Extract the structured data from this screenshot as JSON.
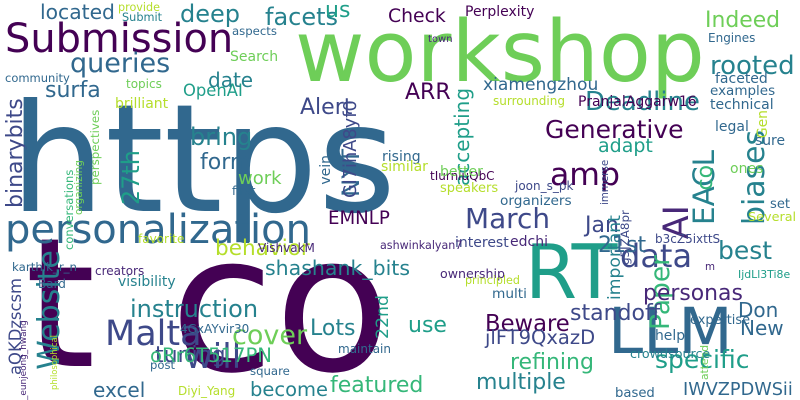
{
  "colors": {
    "background": "#ffffff",
    "palette": [
      "#440154",
      "#482878",
      "#3e4989",
      "#31688e",
      "#26828e",
      "#1f9e89",
      "#35b779",
      "#6ece58",
      "#b5de2b",
      "#fde725"
    ]
  },
  "words": [
    {
      "text": "https",
      "color": "#31688e"
    },
    {
      "text": "t",
      "color": "#440154"
    },
    {
      "text": "co",
      "color": "#440154"
    },
    {
      "text": "workshop",
      "color": "#6ece58"
    },
    {
      "text": "RT",
      "color": "#1f9e89"
    },
    {
      "text": "LLM",
      "color": "#31688e"
    },
    {
      "text": "Submission",
      "color": "#440154"
    },
    {
      "text": "personalization",
      "color": "#31688e"
    },
    {
      "text": "will",
      "color": "#3e4989"
    },
    {
      "text": "Malta",
      "color": "#3e4989"
    },
    {
      "text": "AI",
      "color": "#482878"
    },
    {
      "text": "EACL",
      "color": "#26828e"
    },
    {
      "text": "amp",
      "color": "#440154"
    },
    {
      "text": "Website",
      "color": "#26828e"
    },
    {
      "text": "data",
      "color": "#3e4989"
    },
    {
      "text": "March",
      "color": "#3e4989"
    },
    {
      "text": "Paper",
      "color": "#35b779"
    },
    {
      "text": "NYT",
      "color": "#31688e"
    },
    {
      "text": "co",
      "color": "#35b779"
    },
    {
      "text": "cover",
      "color": "#6ece58"
    },
    {
      "text": "Deadline",
      "color": "#26828e"
    },
    {
      "text": "Indeed",
      "color": "#6ece58"
    },
    {
      "text": "rooted",
      "color": "#26828e"
    },
    {
      "text": "queries",
      "color": "#31688e"
    },
    {
      "text": "facets",
      "color": "#26828e"
    },
    {
      "text": "us",
      "color": "#1f9e89"
    },
    {
      "text": "Check",
      "color": "#440154"
    },
    {
      "text": "deep",
      "color": "#26828e"
    },
    {
      "text": "located",
      "color": "#31688e"
    },
    {
      "text": "Alert",
      "color": "#3e4989"
    },
    {
      "text": "ARR",
      "color": "#440154"
    },
    {
      "text": "xiamengzhou",
      "color": "#31688e"
    },
    {
      "text": "Generative",
      "color": "#440154"
    },
    {
      "text": "adapt",
      "color": "#1f9e89"
    },
    {
      "text": "OpenAI",
      "color": "#1f9e89"
    },
    {
      "text": "date",
      "color": "#26828e"
    },
    {
      "text": "surfa",
      "color": "#31688e"
    },
    {
      "text": "binarybits",
      "color": "#3e4989"
    },
    {
      "text": "bring",
      "color": "#26828e"
    },
    {
      "text": "form",
      "color": "#31688e"
    },
    {
      "text": "work",
      "color": "#6ece58"
    },
    {
      "text": "27th",
      "color": "#1f9e89"
    },
    {
      "text": "Gl7ihA8yf0",
      "color": "#3e4989"
    },
    {
      "text": "accepting",
      "color": "#1f9e89"
    },
    {
      "text": "specific",
      "color": "#1f9e89"
    },
    {
      "text": "biases",
      "color": "#26828e"
    },
    {
      "text": "best",
      "color": "#26828e"
    },
    {
      "text": "Don",
      "color": "#31688e"
    },
    {
      "text": "New",
      "color": "#31688e"
    },
    {
      "text": "personas",
      "color": "#482878"
    },
    {
      "text": "Jan",
      "color": "#3e4989"
    },
    {
      "text": "EMNLP",
      "color": "#440154"
    },
    {
      "text": "behavior",
      "color": "#b5de2b"
    },
    {
      "text": "shashank_bits",
      "color": "#26828e"
    },
    {
      "text": "instruction",
      "color": "#26828e"
    },
    {
      "text": "22nd",
      "color": "#1f9e89"
    },
    {
      "text": "Lots",
      "color": "#26828e"
    },
    {
      "text": "tuning",
      "color": "#3e4989"
    },
    {
      "text": "use",
      "color": "#1f9e89"
    },
    {
      "text": "Beware",
      "color": "#440154"
    },
    {
      "text": "standoff",
      "color": "#3e4989"
    },
    {
      "text": "jlFT9QxazD",
      "color": "#3e4989"
    },
    {
      "text": "refining",
      "color": "#35b779"
    },
    {
      "text": "multiple",
      "color": "#26828e"
    },
    {
      "text": "featured",
      "color": "#35b779"
    },
    {
      "text": "become",
      "color": "#26828e"
    },
    {
      "text": "excel",
      "color": "#31688e"
    },
    {
      "text": "oRr6T517PN",
      "color": "#35b779"
    },
    {
      "text": "aQKDzscsm",
      "color": "#3e4989"
    },
    {
      "text": "important",
      "color": "#26828e"
    },
    {
      "text": "21st",
      "color": "#31688e"
    },
    {
      "text": "IWVZPDWSii",
      "color": "#31688e"
    },
    {
      "text": "PranjalAggarw16",
      "color": "#440154"
    },
    {
      "text": "community",
      "color": "#31688e"
    },
    {
      "text": "aspects",
      "color": "#31688e"
    },
    {
      "text": "Search",
      "color": "#6ece58"
    },
    {
      "text": "provide",
      "color": "#b5de2b"
    },
    {
      "text": "Submit",
      "color": "#26828e"
    },
    {
      "text": "Perplexity",
      "color": "#440154"
    },
    {
      "text": "town",
      "color": "#482878"
    },
    {
      "text": "Engines",
      "color": "#31688e"
    },
    {
      "text": "Ashish_S_AI",
      "color": "#31688e"
    },
    {
      "text": "topics",
      "color": "#6ece58"
    },
    {
      "text": "brilliant",
      "color": "#b5de2b"
    },
    {
      "text": "faceted",
      "color": "#31688e"
    },
    {
      "text": "examples",
      "color": "#31688e"
    },
    {
      "text": "technical",
      "color": "#31688e"
    },
    {
      "text": "surrounding",
      "color": "#b5de2b"
    },
    {
      "text": "legal",
      "color": "#31688e"
    },
    {
      "text": "Gen",
      "color": "#b5de2b"
    },
    {
      "text": "g5JZA8pr",
      "color": "#3e4989"
    },
    {
      "text": "rising",
      "color": "#31688e"
    },
    {
      "text": "similar",
      "color": "#b5de2b"
    },
    {
      "text": "tIurnluQbC",
      "color": "#440154"
    },
    {
      "text": "better",
      "color": "#6ece58"
    },
    {
      "text": "speakers",
      "color": "#b5de2b"
    },
    {
      "text": "immerse",
      "color": "#3e4989"
    },
    {
      "text": "sure",
      "color": "#31688e"
    },
    {
      "text": "ones",
      "color": "#6ece58"
    },
    {
      "text": "b3cZ5ixttS",
      "color": "#3e4989"
    },
    {
      "text": "set",
      "color": "#31688e"
    },
    {
      "text": "joon_s_pk",
      "color": "#3e4989"
    },
    {
      "text": "organizers",
      "color": "#31688e"
    },
    {
      "text": "Several",
      "color": "#b5de2b"
    },
    {
      "text": "edchi",
      "color": "#482878"
    },
    {
      "text": "IjdLl3Ti8e",
      "color": "#1f9e89"
    },
    {
      "text": "interest",
      "color": "#3e4989"
    },
    {
      "text": "ashwinkalyan7",
      "color": "#482878"
    },
    {
      "text": "ownership",
      "color": "#482878"
    },
    {
      "text": "principled",
      "color": "#b5de2b"
    },
    {
      "text": "multi",
      "color": "#31688e"
    },
    {
      "text": "m",
      "color": "#482878"
    },
    {
      "text": "expertise",
      "color": "#31688e"
    },
    {
      "text": "attend",
      "color": "#6ece58"
    },
    {
      "text": "help",
      "color": "#31688e"
    },
    {
      "text": "crowdsource",
      "color": "#26828e"
    },
    {
      "text": "based",
      "color": "#31688e"
    },
    {
      "text": "maintain",
      "color": "#31688e"
    },
    {
      "text": "square",
      "color": "#31688e"
    },
    {
      "text": "Diyi_Yang",
      "color": "#b5de2b"
    },
    {
      "text": "philosophical",
      "color": "#b5de2b"
    },
    {
      "text": "_eunjeong_hwang",
      "color": "#482878"
    },
    {
      "text": "4GxAYvir30",
      "color": "#31688e"
    },
    {
      "text": "post",
      "color": "#31688e"
    },
    {
      "text": "visibility",
      "color": "#26828e"
    },
    {
      "text": "Bard",
      "color": "#31688e"
    },
    {
      "text": "creators",
      "color": "#482878"
    },
    {
      "text": "VishvakM",
      "color": "#482878"
    },
    {
      "text": "karthik_r_n",
      "color": "#31688e"
    },
    {
      "text": "favorite",
      "color": "#b5de2b"
    },
    {
      "text": "first",
      "color": "#31688e"
    },
    {
      "text": "vein",
      "color": "#31688e"
    },
    {
      "text": "conversations",
      "color": "#35b779"
    },
    {
      "text": "perspectives",
      "color": "#6ece58"
    },
    {
      "text": "organizing",
      "color": "#6ece58"
    }
  ]
}
